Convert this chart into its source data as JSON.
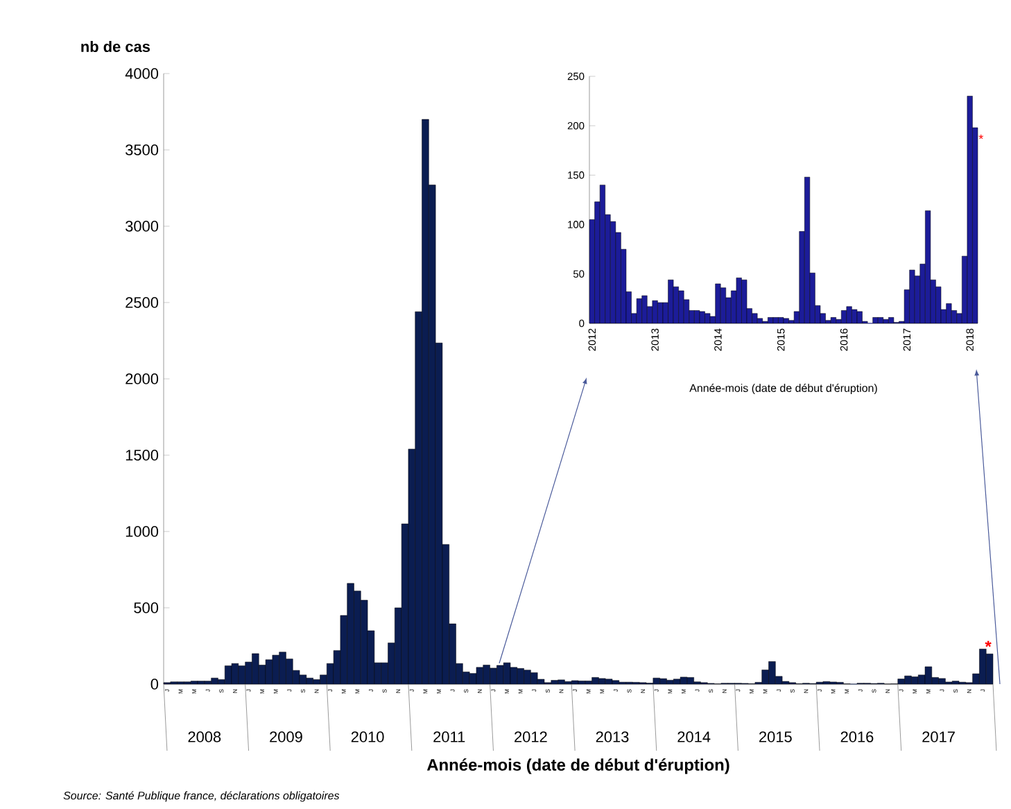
{
  "chart_data": [
    {
      "type": "bar",
      "xlabel": "Année-mois (date de début d'éruption)",
      "ylabel": "nb de cas",
      "color": "#0b1d51",
      "categories": [
        "J",
        null,
        "M",
        null,
        "M",
        null,
        "J",
        null,
        "S",
        null,
        "N",
        null,
        "J",
        null,
        "M",
        null,
        "M",
        null,
        "J",
        null,
        "S",
        null,
        "N",
        null,
        "J",
        null,
        "M",
        null,
        "M",
        null,
        "J",
        null,
        "S",
        null,
        "N",
        null,
        "J",
        null,
        "M",
        null,
        "M",
        null,
        "J",
        null,
        "S",
        null,
        "N",
        null,
        "J",
        null,
        "M",
        null,
        "M",
        null,
        "J",
        null,
        "S",
        null,
        "N",
        null,
        "J",
        null,
        "M",
        null,
        "M",
        null,
        "J",
        null,
        "S",
        null,
        "N",
        null,
        "J",
        null,
        "M",
        null,
        "M",
        null,
        "J",
        null,
        "S",
        null,
        "N",
        null,
        "J",
        null,
        "M",
        null,
        "M",
        null,
        "J",
        null,
        "S",
        null,
        "N",
        null,
        "J",
        null,
        "M",
        null,
        "M",
        null,
        "J",
        null,
        "S",
        null,
        "N",
        null,
        "J",
        null,
        "M",
        null,
        "M",
        null,
        "J",
        null,
        "S",
        null,
        "N",
        null,
        "J",
        null
      ],
      "values": [
        10,
        15,
        15,
        15,
        20,
        20,
        20,
        40,
        30,
        120,
        135,
        120,
        145,
        200,
        125,
        160,
        190,
        210,
        165,
        90,
        60,
        40,
        30,
        60,
        135,
        220,
        450,
        660,
        610,
        550,
        350,
        140,
        140,
        270,
        500,
        1050,
        1540,
        2440,
        3700,
        3270,
        2235,
        915,
        395,
        135,
        80,
        70,
        110,
        125,
        105,
        123,
        140,
        110,
        103,
        92,
        75,
        32,
        10,
        25,
        28,
        17,
        23,
        21,
        21,
        44,
        37,
        33,
        24,
        13,
        13,
        12,
        10,
        7,
        40,
        36,
        26,
        33,
        46,
        44,
        15,
        10,
        5,
        2,
        6,
        6,
        6,
        5,
        3,
        12,
        93,
        148,
        51,
        18,
        10,
        3,
        6,
        4,
        13,
        17,
        14,
        12,
        2,
        0,
        6,
        6,
        4,
        6,
        1,
        2,
        34,
        54,
        48,
        60,
        114,
        44,
        37,
        14,
        20,
        13,
        10,
        68,
        230,
        198
      ],
      "ylim": [
        0,
        4000
      ],
      "yticks": [
        0,
        500,
        1000,
        1500,
        2000,
        2500,
        3000,
        3500,
        4000
      ],
      "annotations": [
        "2008",
        "2009",
        "2010",
        "2011",
        "2012",
        "2013",
        "2014",
        "2015",
        "2016",
        "2017",
        "*",
        "Source: Santé Publique france, déclarations obligatoires"
      ]
    },
    {
      "type": "bar",
      "xlabel": "Année-mois (date de début d'éruption)",
      "color": "#1c1c99",
      "categories": [
        "2012",
        null,
        null,
        null,
        null,
        null,
        null,
        null,
        null,
        null,
        null,
        null,
        "2013",
        null,
        null,
        null,
        null,
        null,
        null,
        null,
        null,
        null,
        null,
        null,
        "2014",
        null,
        null,
        null,
        null,
        null,
        null,
        null,
        null,
        null,
        null,
        null,
        "2015",
        null,
        null,
        null,
        null,
        null,
        null,
        null,
        null,
        null,
        null,
        null,
        "2016",
        null,
        null,
        null,
        null,
        null,
        null,
        null,
        null,
        null,
        null,
        null,
        "2017",
        null,
        null,
        null,
        null,
        null,
        null,
        null,
        null,
        null,
        null,
        null,
        "2018",
        null
      ],
      "values": [
        105,
        123,
        140,
        110,
        103,
        92,
        75,
        32,
        10,
        25,
        28,
        17,
        23,
        21,
        21,
        44,
        37,
        33,
        24,
        13,
        13,
        12,
        10,
        7,
        40,
        36,
        26,
        33,
        46,
        44,
        15,
        10,
        5,
        2,
        6,
        6,
        6,
        5,
        3,
        12,
        93,
        148,
        51,
        18,
        10,
        3,
        6,
        4,
        13,
        17,
        14,
        12,
        2,
        0,
        6,
        6,
        4,
        6,
        1,
        2,
        34,
        54,
        48,
        60,
        114,
        44,
        37,
        14,
        20,
        13,
        10,
        68,
        230,
        198
      ],
      "ylim": [
        0,
        250
      ],
      "yticks": [
        0,
        50,
        100,
        150,
        200,
        250
      ],
      "annotations": [
        "*"
      ]
    }
  ]
}
